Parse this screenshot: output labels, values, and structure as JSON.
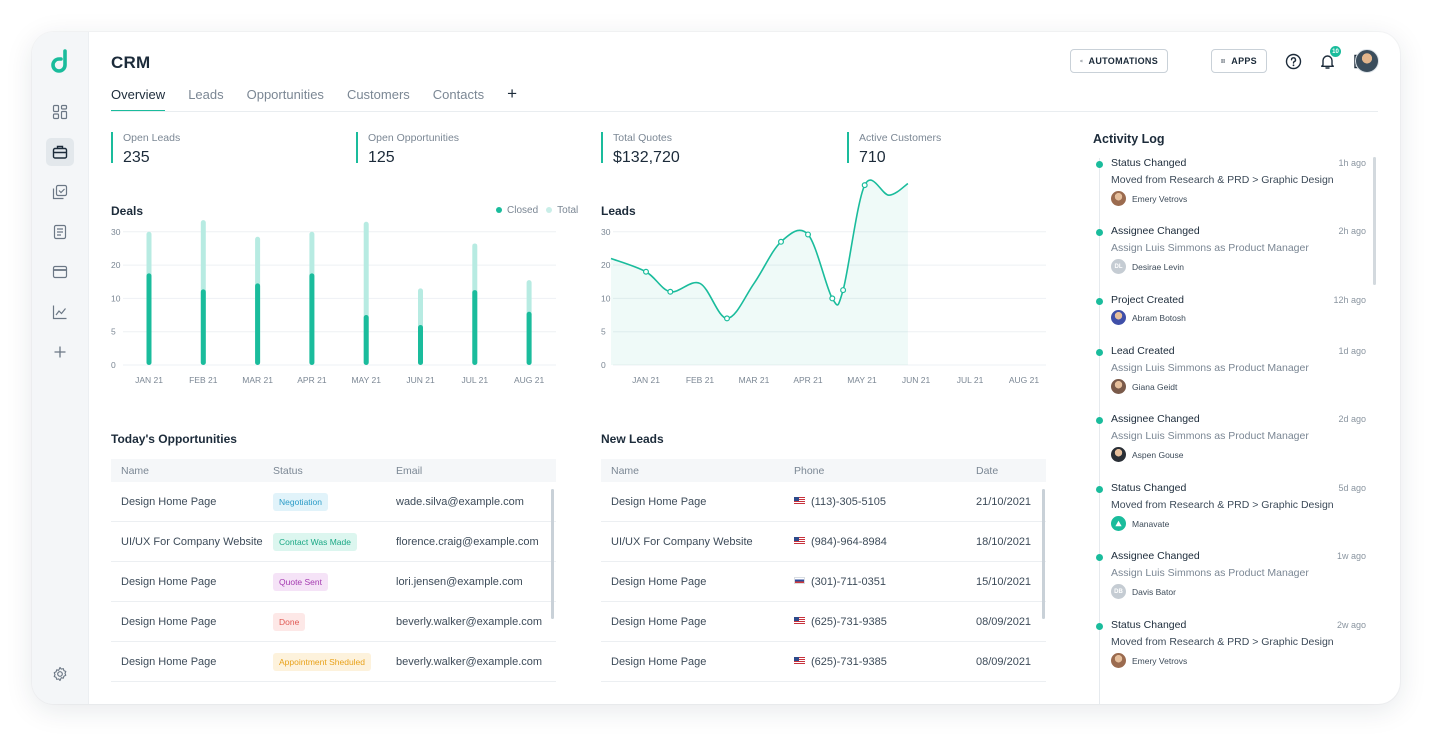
{
  "app": {
    "title": "CRM",
    "brand_color": "#1abc9c"
  },
  "sidebar": {
    "items": [
      {
        "icon": "dashboard-icon",
        "active": false
      },
      {
        "icon": "briefcase-icon",
        "active": true
      },
      {
        "icon": "copy-check-icon",
        "active": false
      },
      {
        "icon": "document-icon",
        "active": false
      },
      {
        "icon": "credit-card-icon",
        "active": false
      },
      {
        "icon": "chart-line-icon",
        "active": false
      },
      {
        "icon": "plus-icon",
        "active": false
      }
    ],
    "settings_icon": "gear-icon"
  },
  "header": {
    "automations_label": "AUTOMATIONS",
    "apps_label": "APPS",
    "notification_count": "10"
  },
  "tabs": [
    {
      "label": "Overview",
      "active": true
    },
    {
      "label": "Leads",
      "active": false
    },
    {
      "label": "Opportunities",
      "active": false
    },
    {
      "label": "Customers",
      "active": false
    },
    {
      "label": "Contacts",
      "active": false
    }
  ],
  "stats": [
    {
      "label": "Open Leads",
      "value": "235"
    },
    {
      "label": "Open Opportunities",
      "value": "125"
    },
    {
      "label": "Total Quotes",
      "value": "$132,720"
    },
    {
      "label": "Active Customers",
      "value": "710"
    }
  ],
  "deals": {
    "title": "Deals",
    "legend_closed": "Closed",
    "legend_total": "Total"
  },
  "leads_chart": {
    "title": "Leads"
  },
  "chart_data": [
    {
      "type": "bar",
      "title": "Deals",
      "categories": [
        "JAN 21",
        "FEB 21",
        "MAR 21",
        "APR 21",
        "MAY 21",
        "JUN 21",
        "JUL 21",
        "AUG 21"
      ],
      "series": [
        {
          "name": "Closed",
          "values": [
            17.5,
            12.7,
            14.5,
            17.5,
            7.5,
            6,
            12.5,
            8
          ],
          "color": "#1abc9c"
        },
        {
          "name": "Total",
          "values": [
            30,
            33.5,
            28.5,
            30,
            33,
            13,
            26.5,
            15.5
          ],
          "color": "#b7ebe2"
        }
      ],
      "yticks": [
        0,
        5,
        10,
        20,
        30
      ],
      "legend": "top-right",
      "grid": true
    },
    {
      "type": "area",
      "title": "Leads",
      "categories": [
        "JAN 21",
        "FEB 21",
        "MAR 21",
        "APR 21",
        "MAY 21",
        "JUN 21",
        "JUL 21",
        "AUG 21"
      ],
      "curve": [
        {
          "x": 0,
          "y": 18
        },
        {
          "x": 0.45,
          "y": 12
        },
        {
          "x": 1,
          "y": 14.5
        },
        {
          "x": 1.5,
          "y": 7
        },
        {
          "x": 2,
          "y": 14.5
        },
        {
          "x": 2.5,
          "y": 27
        },
        {
          "x": 3,
          "y": 29.2
        },
        {
          "x": 3.45,
          "y": 10
        },
        {
          "x": 3.65,
          "y": 12.5
        },
        {
          "x": 4.05,
          "y": 44
        },
        {
          "x": 4.5,
          "y": 41
        },
        {
          "x": 4.85,
          "y": 44.5
        }
      ],
      "yticks": [
        0,
        5,
        10,
        20,
        30
      ],
      "color": "#1abc9c",
      "grid": true
    }
  ],
  "opportunities": {
    "title": "Today's Opportunities",
    "columns": [
      "Name",
      "Status",
      "Email"
    ],
    "rows": [
      {
        "name": "Design Home Page",
        "status": "Negotiation",
        "status_color": "#2c9cc7",
        "status_bg": "#e1f3fa",
        "email": "wade.silva@example.com"
      },
      {
        "name": "UI/UX For Company Website",
        "status": "Contact Was Made",
        "status_color": "#1aa885",
        "status_bg": "#dcf6ef",
        "email": "florence.craig@example.com"
      },
      {
        "name": "Design Home Page",
        "status": "Quote Sent",
        "status_color": "#a43bb0",
        "status_bg": "#f5e3f7",
        "email": "lori.jensen@example.com"
      },
      {
        "name": "Design Home Page",
        "status": "Done",
        "status_color": "#e05a55",
        "status_bg": "#fde8e7",
        "email": "beverly.walker@example.com"
      },
      {
        "name": "Design Home Page",
        "status": "Appointment Sheduled",
        "status_color": "#e8a21b",
        "status_bg": "#fdf2dc",
        "email": "beverly.walker@example.com"
      }
    ]
  },
  "new_leads": {
    "title": "New Leads",
    "columns": [
      "Name",
      "Phone",
      "Date"
    ],
    "rows": [
      {
        "name": "Design Home Page",
        "flag": "us",
        "phone": "(113)-305-5105",
        "date": "21/10/2021"
      },
      {
        "name": "UI/UX For Company Website",
        "flag": "us",
        "phone": "(984)-964-8984",
        "date": "18/10/2021"
      },
      {
        "name": "Design Home Page",
        "flag": "ru",
        "phone": "(301)-711-0351",
        "date": "15/10/2021"
      },
      {
        "name": "Design Home Page",
        "flag": "us",
        "phone": "(625)-731-9385",
        "date": "08/09/2021"
      },
      {
        "name": "Design Home Page",
        "flag": "us",
        "phone": "(625)-731-9385",
        "date": "08/09/2021"
      }
    ]
  },
  "activity_log": {
    "title": "Activity Log",
    "items": [
      {
        "title": "Status Changed",
        "time": "1h ago",
        "desc": "Moved from Research & PRD > Graphic Design",
        "desc_dark": true,
        "user": "Emery Vetrovs",
        "avatar": "photo",
        "avatar_color": "#9b6b4f",
        "initials": ""
      },
      {
        "title": "Assignee Changed",
        "time": "2h ago",
        "desc": "Assign Luis Simmons as Product Manager",
        "desc_dark": false,
        "user": "Desirae Levin",
        "avatar": "initials",
        "avatar_color": "#c5ccd3",
        "initials": "DL"
      },
      {
        "title": "Project Created",
        "time": "12h ago",
        "desc": "",
        "desc_dark": false,
        "user": "Abram Botosh",
        "avatar": "photo",
        "avatar_color": "#3f4fa8",
        "initials": ""
      },
      {
        "title": "Lead Created",
        "time": "1d ago",
        "desc": "Assign Luis Simmons as Product Manager",
        "desc_dark": false,
        "user": "Giana Geidt",
        "avatar": "photo",
        "avatar_color": "#7a5a4a",
        "initials": ""
      },
      {
        "title": "Assignee Changed",
        "time": "2d ago",
        "desc": "Assign Luis Simmons as Product Manager",
        "desc_dark": false,
        "user": "Aspen Gouse",
        "avatar": "photo",
        "avatar_color": "#2a2f36",
        "initials": ""
      },
      {
        "title": "Status Changed",
        "time": "5d ago",
        "desc": "Moved from Research & PRD > Graphic Design",
        "desc_dark": true,
        "user": "Manavate",
        "avatar": "logo",
        "avatar_color": "#1abc9c",
        "initials": ""
      },
      {
        "title": "Assignee Changed",
        "time": "1w ago",
        "desc": "Assign Luis Simmons as Product Manager",
        "desc_dark": false,
        "user": "Davis Bator",
        "avatar": "initials",
        "avatar_color": "#c5ccd3",
        "initials": "DB"
      },
      {
        "title": "Status Changed",
        "time": "2w ago",
        "desc": "Moved from Research & PRD > Graphic Design",
        "desc_dark": true,
        "user": "Emery Vetrovs",
        "avatar": "photo",
        "avatar_color": "#9b6b4f",
        "initials": ""
      }
    ]
  }
}
